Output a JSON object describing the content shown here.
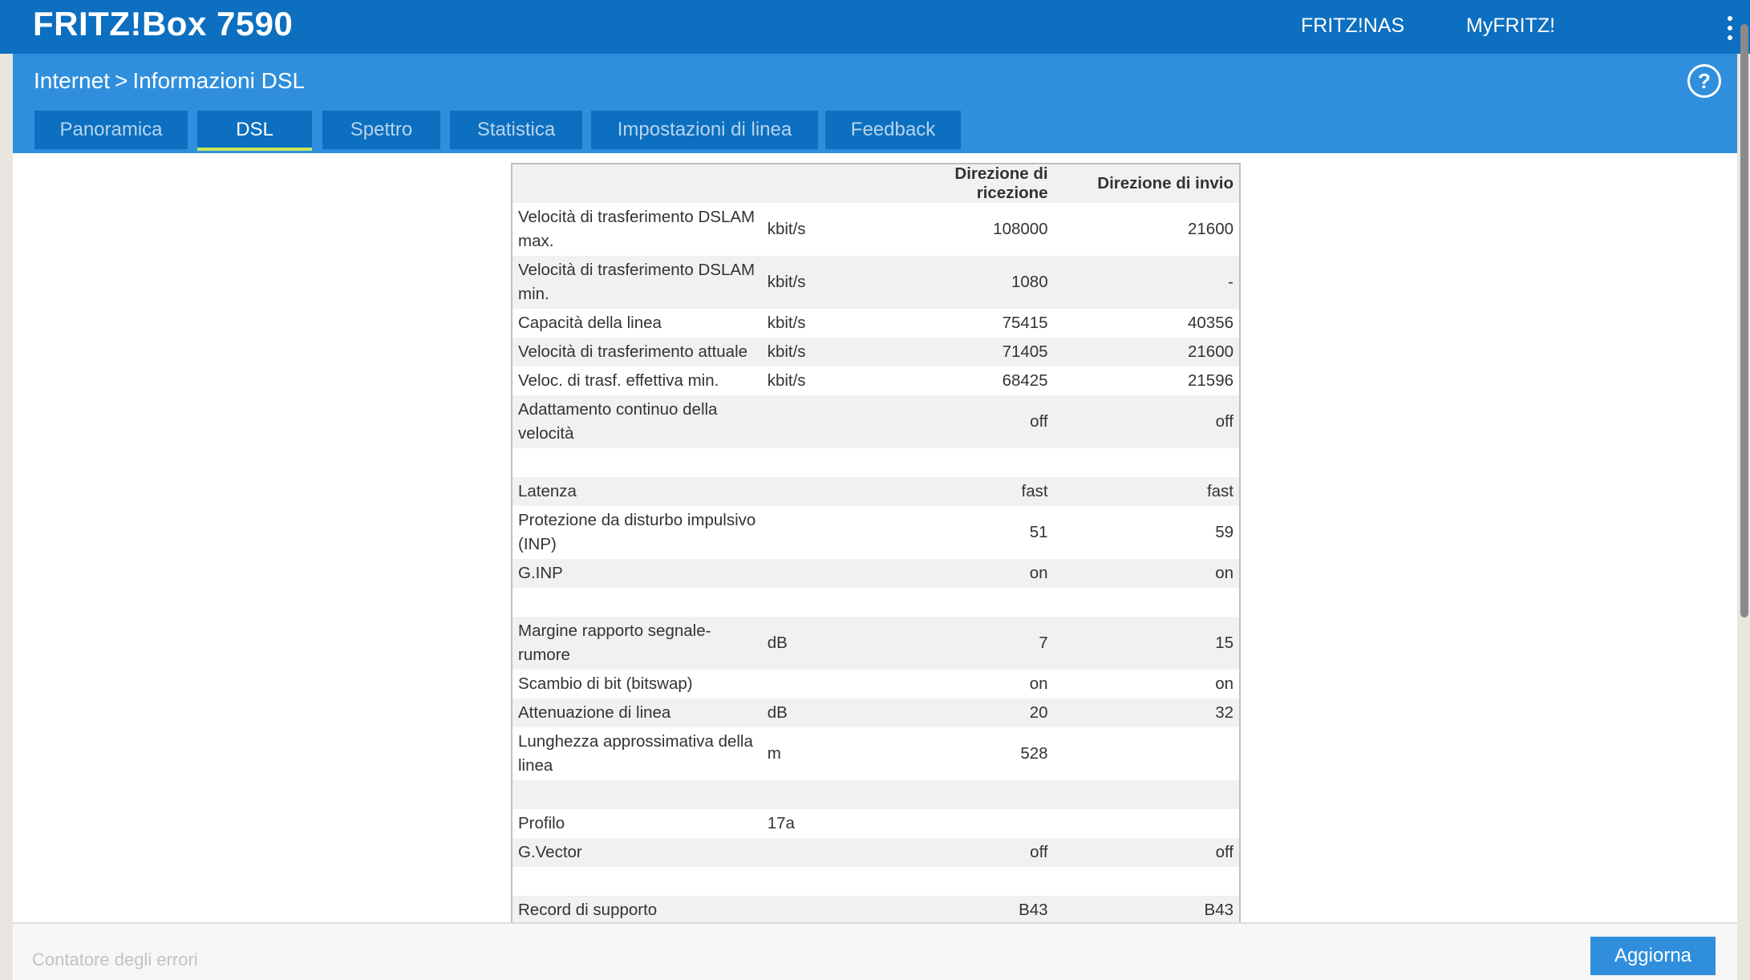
{
  "header": {
    "brand": "FRITZ!Box 7590",
    "links": [
      "FRITZ!NAS",
      "MyFRITZ!"
    ]
  },
  "breadcrumb": {
    "parent": "Internet",
    "separator": ">",
    "current": "Informazioni DSL"
  },
  "help_icon": "?",
  "tabs": [
    "Panoramica",
    "DSL",
    "Spettro",
    "Statistica",
    "Impostazioni di linea",
    "Feedback"
  ],
  "active_tab": "DSL",
  "table": {
    "headers": [
      "",
      "",
      "Direzione di ricezione",
      "Direzione di invio"
    ],
    "rows": [
      [
        "Velocità di trasferimento DSLAM max.",
        "kbit/s",
        "108000",
        "21600"
      ],
      [
        "Velocità di trasferimento DSLAM min.",
        "kbit/s",
        "1080",
        "-"
      ],
      [
        "Capacità della linea",
        "kbit/s",
        "75415",
        "40356"
      ],
      [
        "Velocità di trasferimento attuale",
        "kbit/s",
        "71405",
        "21600"
      ],
      [
        "Veloc. di trasf. effettiva min.",
        "kbit/s",
        "68425",
        "21596"
      ],
      [
        "Adattamento continuo della velocità",
        "",
        "off",
        "off"
      ],
      [
        "",
        "",
        "",
        ""
      ],
      [
        "Latenza",
        "",
        "fast",
        "fast"
      ],
      [
        "Protezione da disturbo impulsivo (INP)",
        "",
        "51",
        "59"
      ],
      [
        "G.INP",
        "",
        "on",
        "on"
      ],
      [
        "",
        "",
        "",
        ""
      ],
      [
        "Margine rapporto segnale-rumore",
        "dB",
        "7",
        "15"
      ],
      [
        "Scambio di bit (bitswap)",
        "",
        "on",
        "on"
      ],
      [
        "Attenuazione di linea",
        "dB",
        "20",
        "32"
      ],
      [
        "Lunghezza approssimativa della linea",
        "m",
        "528",
        ""
      ],
      [
        "",
        "",
        "",
        ""
      ],
      [
        "Profilo",
        "17a",
        "",
        ""
      ],
      [
        "G.Vector",
        "",
        "off",
        "off"
      ],
      [
        "",
        "",
        "",
        ""
      ],
      [
        "Record di supporto",
        "",
        "B43",
        "B43"
      ]
    ]
  },
  "footer": {
    "section_label": "Contatore degli errori",
    "refresh_button": "Aggiorna"
  }
}
